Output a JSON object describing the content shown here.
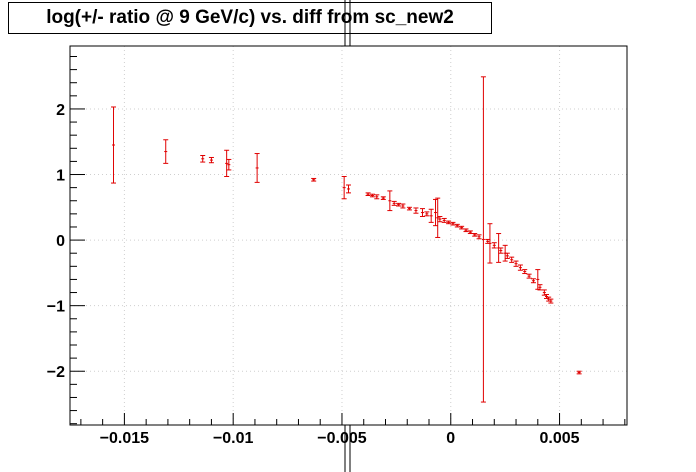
{
  "chart_data": {
    "type": "scatter",
    "title": "log(+/- ratio @ 9 GeV/c) vs. diff from sc_new2",
    "xlabel": "",
    "ylabel": "",
    "xlim": [
      -0.0175,
      0.0081
    ],
    "ylim": [
      -2.82,
      2.96
    ],
    "x_ticks": [
      -0.015,
      -0.01,
      -0.005,
      0,
      0.005
    ],
    "x_tick_labels": [
      "−0.015",
      "−0.01",
      "−0.005",
      "0",
      "0.005"
    ],
    "y_ticks": [
      -2,
      -1,
      0,
      1,
      2
    ],
    "y_tick_labels": [
      "−2",
      "−1",
      "0",
      "1",
      "2"
    ],
    "grid": true,
    "marker_color": "#e00000",
    "series": [
      {
        "points": [
          {
            "x": -0.0155,
            "y": 1.45,
            "err": 0.58
          },
          {
            "x": -0.0131,
            "y": 1.35,
            "err": 0.18
          },
          {
            "x": -0.0114,
            "y": 1.24,
            "err": 0.05
          },
          {
            "x": -0.011,
            "y": 1.22,
            "err": 0.04
          },
          {
            "x": -0.0103,
            "y": 1.17,
            "err": 0.2
          },
          {
            "x": -0.0102,
            "y": 1.15,
            "err": 0.08
          },
          {
            "x": -0.0089,
            "y": 1.1,
            "err": 0.22
          },
          {
            "x": -0.0063,
            "y": 0.92,
            "err": 0.02
          },
          {
            "x": -0.0049,
            "y": 0.8,
            "err": 0.17
          },
          {
            "x": -0.0047,
            "y": 0.78,
            "err": 0.06
          },
          {
            "x": -0.0038,
            "y": 0.7,
            "err": 0.02
          },
          {
            "x": -0.0036,
            "y": 0.68,
            "err": 0.02
          },
          {
            "x": -0.0034,
            "y": 0.66,
            "err": 0.03
          },
          {
            "x": -0.0031,
            "y": 0.64,
            "err": 0.02
          },
          {
            "x": -0.0028,
            "y": 0.6,
            "err": 0.15
          },
          {
            "x": -0.0026,
            "y": 0.56,
            "err": 0.03
          },
          {
            "x": -0.0024,
            "y": 0.54,
            "err": 0.02
          },
          {
            "x": -0.0022,
            "y": 0.52,
            "err": 0.03
          },
          {
            "x": -0.0019,
            "y": 0.48,
            "err": 0.02
          },
          {
            "x": -0.0016,
            "y": 0.45,
            "err": 0.04
          },
          {
            "x": -0.0013,
            "y": 0.42,
            "err": 0.06
          },
          {
            "x": -0.0011,
            "y": 0.4,
            "err": 0.03
          },
          {
            "x": -0.0009,
            "y": 0.37,
            "err": 0.1
          },
          {
            "x": -0.0007,
            "y": 0.42,
            "err": 0.2
          },
          {
            "x": -0.0006,
            "y": 0.34,
            "err": 0.3
          },
          {
            "x": -0.0005,
            "y": 0.32,
            "err": 0.04
          },
          {
            "x": -0.0003,
            "y": 0.3,
            "err": 0.03
          },
          {
            "x": -0.0001,
            "y": 0.27,
            "err": 0.02
          },
          {
            "x": 0.0001,
            "y": 0.25,
            "err": 0.02
          },
          {
            "x": 0.0003,
            "y": 0.22,
            "err": 0.02
          },
          {
            "x": 0.0005,
            "y": 0.19,
            "err": 0.02
          },
          {
            "x": 0.0007,
            "y": 0.15,
            "err": 0.02
          },
          {
            "x": 0.0009,
            "y": 0.12,
            "err": 0.02
          },
          {
            "x": 0.0011,
            "y": 0.08,
            "err": 0.02
          },
          {
            "x": 0.0013,
            "y": 0.05,
            "err": 0.03
          },
          {
            "x": 0.0015,
            "y": 0.01,
            "err": 2.48
          },
          {
            "x": 0.0017,
            "y": -0.02,
            "err": 0.03
          },
          {
            "x": 0.0018,
            "y": -0.05,
            "err": 0.3
          },
          {
            "x": 0.002,
            "y": -0.08,
            "err": 0.04
          },
          {
            "x": 0.0022,
            "y": -0.12,
            "err": 0.22
          },
          {
            "x": 0.0023,
            "y": -0.16,
            "err": 0.04
          },
          {
            "x": 0.0025,
            "y": -0.2,
            "err": 0.12
          },
          {
            "x": 0.0026,
            "y": -0.24,
            "err": 0.04
          },
          {
            "x": 0.0028,
            "y": -0.3,
            "err": 0.04
          },
          {
            "x": 0.003,
            "y": -0.36,
            "err": 0.04
          },
          {
            "x": 0.0032,
            "y": -0.42,
            "err": 0.04
          },
          {
            "x": 0.0034,
            "y": -0.48,
            "err": 0.03
          },
          {
            "x": 0.0036,
            "y": -0.55,
            "err": 0.03
          },
          {
            "x": 0.0038,
            "y": -0.62,
            "err": 0.03
          },
          {
            "x": 0.004,
            "y": -0.6,
            "err": 0.15
          },
          {
            "x": 0.0041,
            "y": -0.72,
            "err": 0.04
          },
          {
            "x": 0.0043,
            "y": -0.8,
            "err": 0.04
          },
          {
            "x": 0.0044,
            "y": -0.86,
            "err": 0.03
          },
          {
            "x": 0.0045,
            "y": -0.9,
            "err": 0.03
          },
          {
            "x": 0.0046,
            "y": -0.93,
            "err": 0.03
          },
          {
            "x": 0.0059,
            "y": -2.02,
            "err": 0.02
          }
        ]
      }
    ]
  }
}
